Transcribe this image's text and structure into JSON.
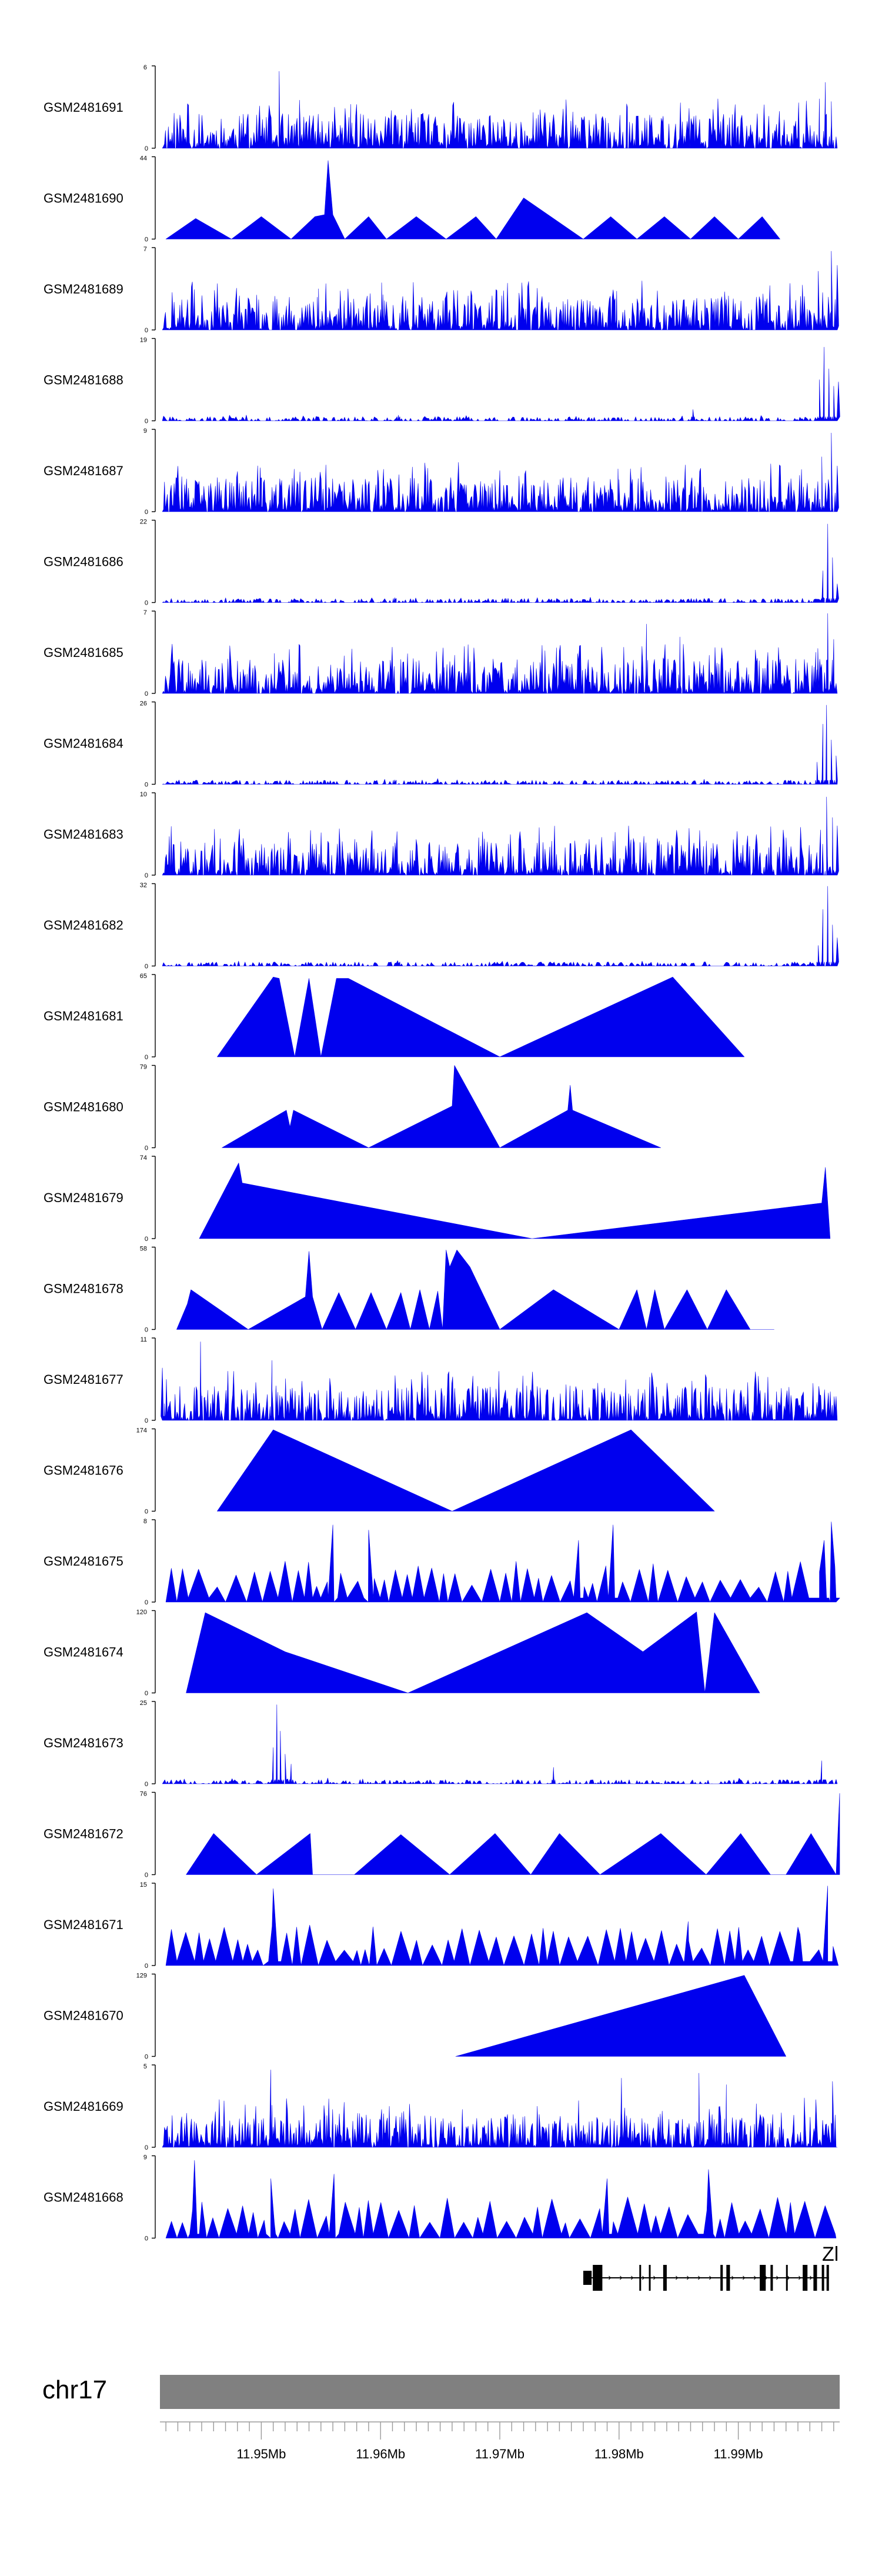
{
  "colors": {
    "track_fill": "#0000ee",
    "axis": "#000000",
    "ideogram": "#808080",
    "gene": "#000000"
  },
  "chart_data": {
    "type": "area",
    "chromosome": "chr17",
    "xlim": [
      11.9415,
      11.9985
    ],
    "x_ticks": [
      11.95,
      11.96,
      11.97,
      11.98,
      11.99
    ],
    "x_tick_labels": [
      "11.95Mb",
      "11.96Mb",
      "11.97Mb",
      "11.98Mb",
      "11.99Mb"
    ],
    "gene_label": "Zl",
    "tracks": [
      {
        "name": "GSM2481691",
        "ymax": 6,
        "ymax_label": "6",
        "ymin_label": "0",
        "style": "dense",
        "seed": 11,
        "peaks": [
          [
            11.9515,
            5.6
          ],
          [
            11.9532,
            3.5
          ],
          [
            11.9575,
            3.2
          ],
          [
            11.9728,
            2.6
          ],
          [
            11.9807,
            3.0
          ],
          [
            11.9968,
            3.6
          ],
          [
            11.9973,
            4.8
          ],
          [
            11.9978,
            3.4
          ]
        ]
      },
      {
        "name": "GSM2481690",
        "ymax": 44,
        "ymax_label": "44",
        "ymin_label": "0",
        "style": "tri",
        "x": [
          11.942,
          11.9445,
          11.9475,
          11.95,
          11.9525,
          11.9545,
          11.9553,
          11.9556,
          11.956,
          11.957,
          11.959,
          11.9605,
          11.963,
          11.9655,
          11.968,
          11.9697,
          11.972,
          11.9745,
          11.977,
          11.9793,
          11.9815,
          11.9838,
          11.986,
          11.988,
          11.99,
          11.992,
          11.9935
        ],
        "y": [
          0,
          11,
          0,
          12,
          0,
          12,
          13,
          42,
          13,
          0,
          12,
          0,
          12,
          0,
          12,
          0,
          22,
          11,
          0,
          12,
          0,
          12,
          0,
          12,
          0,
          12,
          0
        ]
      },
      {
        "name": "GSM2481689",
        "ymax": 7,
        "ymax_label": "7",
        "ymin_label": "0",
        "style": "dense",
        "seed": 23,
        "peaks": [
          [
            11.9548,
            3.5
          ],
          [
            11.9602,
            3.0
          ],
          [
            11.9757,
            2.6
          ],
          [
            11.9798,
            3.3
          ],
          [
            11.9872,
            2.6
          ],
          [
            11.9967,
            5.0
          ],
          [
            11.9978,
            6.7
          ],
          [
            11.9983,
            5.5
          ]
        ]
      },
      {
        "name": "GSM2481688",
        "ymax": 19,
        "ymax_label": "19",
        "ymin_label": "0",
        "style": "sparse",
        "seed": 31,
        "peaks": [
          [
            11.9615,
            1.3
          ],
          [
            11.9862,
            2.6
          ],
          [
            11.9968,
            9.5
          ],
          [
            11.9972,
            17.0
          ],
          [
            11.9976,
            12.0
          ],
          [
            11.998,
            8.0
          ],
          [
            11.9984,
            9.0
          ]
        ]
      },
      {
        "name": "GSM2481687",
        "ymax": 9,
        "ymax_label": "9",
        "ymin_label": "0",
        "style": "dense",
        "seed": 37,
        "peaks": [
          [
            11.9499,
            4.8
          ],
          [
            11.9602,
            3.3
          ],
          [
            11.9696,
            3.5
          ],
          [
            11.98,
            3.5
          ],
          [
            11.997,
            6.0
          ],
          [
            11.9978,
            8.6
          ],
          [
            11.9983,
            5.0
          ]
        ]
      },
      {
        "name": "GSM2481686",
        "ymax": 22,
        "ymax_label": "22",
        "ymin_label": "0",
        "style": "sparse",
        "seed": 43,
        "peaks": [
          [
            11.9612,
            1.3
          ],
          [
            11.9706,
            1.1
          ],
          [
            11.9971,
            8.5
          ],
          [
            11.9975,
            21.0
          ],
          [
            11.9979,
            12.0
          ],
          [
            11.9983,
            5.0
          ]
        ]
      },
      {
        "name": "GSM2481685",
        "ymax": 7,
        "ymax_label": "7",
        "ymin_label": "0",
        "style": "dense",
        "seed": 47,
        "peaks": [
          [
            11.9511,
            3.4
          ],
          [
            11.9652,
            3.0
          ],
          [
            11.9823,
            5.9
          ],
          [
            11.9851,
            4.8
          ],
          [
            11.9965,
            3.5
          ],
          [
            11.9975,
            6.8
          ],
          [
            11.998,
            4.6
          ]
        ]
      },
      {
        "name": "GSM2481684",
        "ymax": 26,
        "ymax_label": "26",
        "ymin_label": "0",
        "style": "sparse",
        "seed": 53,
        "peaks": [
          [
            11.9612,
            1.4
          ],
          [
            11.9966,
            7.0
          ],
          [
            11.9971,
            19.0
          ],
          [
            11.9974,
            25.0
          ],
          [
            11.9978,
            14.0
          ],
          [
            11.9982,
            9.0
          ]
        ]
      },
      {
        "name": "GSM2481683",
        "ymax": 10,
        "ymax_label": "10",
        "ymin_label": "0",
        "style": "dense",
        "seed": 59,
        "peaks": [
          [
            11.9511,
            3.8
          ],
          [
            11.9625,
            3.0
          ],
          [
            11.981,
            4.3
          ],
          [
            11.9969,
            5.5
          ],
          [
            11.9974,
            9.5
          ],
          [
            11.9979,
            7.0
          ],
          [
            11.9983,
            6.0
          ]
        ]
      },
      {
        "name": "GSM2481682",
        "ymax": 32,
        "ymax_label": "32",
        "ymin_label": "0",
        "style": "sparse",
        "seed": 61,
        "peaks": [
          [
            11.9615,
            1.2
          ],
          [
            11.9967,
            8.0
          ],
          [
            11.9971,
            22.0
          ],
          [
            11.9975,
            31.0
          ],
          [
            11.9979,
            16.0
          ],
          [
            11.9983,
            11.0
          ]
        ]
      },
      {
        "name": "GSM2481681",
        "ymax": 65,
        "ymax_label": "65",
        "ymin_label": "0",
        "style": "tri",
        "x": [
          11.9463,
          11.951,
          11.9515,
          11.9528,
          11.954,
          11.955,
          11.9563,
          11.9573,
          11.97,
          11.9845,
          11.9905
        ],
        "y": [
          0,
          63,
          62,
          0,
          62,
          0,
          62,
          62,
          0,
          63,
          0
        ]
      },
      {
        "name": "GSM2481680",
        "ymax": 79,
        "ymax_label": "79",
        "ymin_label": "0",
        "style": "tri",
        "x": [
          11.9467,
          11.9521,
          11.9524,
          11.9527,
          11.959,
          11.966,
          11.9662,
          11.97,
          11.9757,
          11.9759,
          11.9761,
          11.9835
        ],
        "y": [
          0,
          36,
          20,
          36,
          0,
          40,
          79,
          0,
          36,
          60,
          36,
          0
        ]
      },
      {
        "name": "GSM2481679",
        "ymax": 74,
        "ymax_label": "74",
        "ymin_label": "0",
        "style": "tri",
        "x": [
          11.9448,
          11.9481,
          11.9484,
          11.9727,
          11.997,
          11.9973,
          11.9977
        ],
        "y": [
          0,
          68,
          50,
          0,
          32,
          64,
          0
        ]
      },
      {
        "name": "GSM2481678",
        "ymax": 58,
        "ymax_label": "58",
        "ymin_label": "0",
        "style": "tri",
        "x": [
          11.9429,
          11.9438,
          11.9441,
          11.9489,
          11.9537,
          11.954,
          11.9543,
          11.9551,
          11.9565,
          11.9579,
          11.9592,
          11.9605,
          11.9617,
          11.9625,
          11.9633,
          11.9641,
          11.9648,
          11.9652,
          11.9655,
          11.9658,
          11.9664,
          11.9675,
          11.97,
          11.9745,
          11.98,
          11.9815,
          11.9823,
          11.983,
          11.9838,
          11.9857,
          11.9874,
          11.989,
          11.991,
          11.993
        ],
        "y": [
          0,
          18,
          28,
          0,
          23,
          55,
          23,
          0,
          26,
          0,
          26,
          0,
          26,
          0,
          28,
          0,
          27,
          0,
          56,
          44,
          56,
          44,
          0,
          28,
          0,
          28,
          0,
          28,
          0,
          28,
          0,
          28,
          0,
          0
        ]
      },
      {
        "name": "GSM2481677",
        "ymax": 11,
        "ymax_label": "11",
        "ymin_label": "0",
        "style": "dense",
        "seed": 67,
        "peaks": [
          [
            11.9417,
            7.0
          ],
          [
            11.942,
            2.0
          ],
          [
            11.9449,
            10.5
          ],
          [
            11.9452,
            3.0
          ],
          [
            11.9509,
            8.0
          ],
          [
            11.9513,
            2.0
          ]
        ]
      },
      {
        "name": "GSM2481676",
        "ymax": 174,
        "ymax_label": "174",
        "ymin_label": "0",
        "style": "tri",
        "x": [
          11.9463,
          11.951,
          11.966,
          11.981,
          11.988
        ],
        "y": [
          0,
          172,
          0,
          172,
          0
        ]
      },
      {
        "name": "GSM2481675",
        "ymax": 8,
        "ymax_label": "8",
        "ymin_label": "0",
        "style": "tri-rand",
        "seed": 71,
        "peaks": [
          [
            11.956,
            7.5
          ],
          [
            11.959,
            7.0
          ],
          [
            11.9766,
            6.0
          ],
          [
            11.9795,
            7.5
          ],
          [
            11.9972,
            6.0
          ],
          [
            11.9978,
            7.8
          ]
        ]
      },
      {
        "name": "GSM2481674",
        "ymax": 120,
        "ymax_label": "120",
        "ymin_label": "0",
        "style": "tri",
        "x": [
          11.9437,
          11.9453,
          11.952,
          11.9623,
          11.9773,
          11.982,
          11.9865,
          11.9872,
          11.988,
          11.9918
        ],
        "y": [
          0,
          117,
          60,
          0,
          117,
          60,
          118,
          0,
          117,
          0
        ]
      },
      {
        "name": "GSM2481673",
        "ymax": 25,
        "ymax_label": "25",
        "ymin_label": "0",
        "style": "sparse",
        "seed": 79,
        "peaks": [
          [
            11.951,
            11.0
          ],
          [
            11.9513,
            24.0
          ],
          [
            11.9516,
            16.0
          ],
          [
            11.952,
            9.0
          ],
          [
            11.9525,
            6.0
          ],
          [
            11.9745,
            5.0
          ],
          [
            11.997,
            7.0
          ]
        ]
      },
      {
        "name": "GSM2481672",
        "ymax": 76,
        "ymax_label": "76",
        "ymin_label": "0",
        "style": "tri",
        "x": [
          11.9437,
          11.946,
          11.9496,
          11.9541,
          11.9543,
          11.9578,
          11.9617,
          11.9658,
          11.9696,
          11.9726,
          11.975,
          11.9784,
          11.9835,
          11.9873,
          11.9902,
          11.9927,
          11.994,
          11.9961,
          11.9982,
          11.9985
        ],
        "y": [
          0,
          38,
          0,
          38,
          0,
          0,
          37,
          0,
          38,
          0,
          38,
          0,
          38,
          0,
          38,
          0,
          0,
          38,
          0,
          75
        ]
      },
      {
        "name": "GSM2481671",
        "ymax": 15,
        "ymax_label": "15",
        "ymin_label": "0",
        "style": "tri-rand",
        "seed": 83,
        "peaks": [
          [
            11.951,
            14.0
          ],
          [
            11.9858,
            8.0
          ],
          [
            11.995,
            7.0
          ],
          [
            11.9975,
            14.5
          ]
        ]
      },
      {
        "name": "GSM2481670",
        "ymax": 129,
        "ymax_label": "129",
        "ymin_label": "0",
        "style": "tri",
        "x": [
          11.9663,
          11.9905,
          11.994
        ],
        "y": [
          0,
          127,
          0
        ]
      },
      {
        "name": "GSM2481669",
        "ymax": 5,
        "ymax_label": "5",
        "ymin_label": "0",
        "style": "dense",
        "seed": 89,
        "peaks": [
          [
            11.9508,
            4.7
          ],
          [
            11.9802,
            4.2
          ],
          [
            11.9867,
            4.5
          ],
          [
            11.989,
            3.8
          ],
          [
            11.9979,
            4.0
          ]
        ]
      },
      {
        "name": "GSM2481668",
        "ymax": 9,
        "ymax_label": "9",
        "ymin_label": "0",
        "style": "tri-rand",
        "seed": 97,
        "peaks": [
          [
            11.9444,
            8.5
          ],
          [
            11.9508,
            6.5
          ],
          [
            11.9561,
            7.0
          ],
          [
            11.979,
            6.5
          ],
          [
            11.9875,
            7.5
          ]
        ]
      }
    ],
    "gene_exons": [
      [
        11.977,
        11.9777
      ],
      [
        11.9778,
        11.9786
      ],
      [
        11.9817,
        11.9818
      ],
      [
        11.9825,
        11.9826
      ],
      [
        11.9837,
        11.984
      ],
      [
        11.9885,
        11.9887
      ],
      [
        11.989,
        11.9893
      ],
      [
        11.9918,
        11.9923
      ],
      [
        11.9927,
        11.9929
      ],
      [
        11.994,
        11.9941
      ],
      [
        11.9954,
        11.9958
      ],
      [
        11.9963,
        11.9966
      ],
      [
        11.997,
        11.9972
      ],
      [
        11.9974,
        11.9976
      ]
    ]
  }
}
